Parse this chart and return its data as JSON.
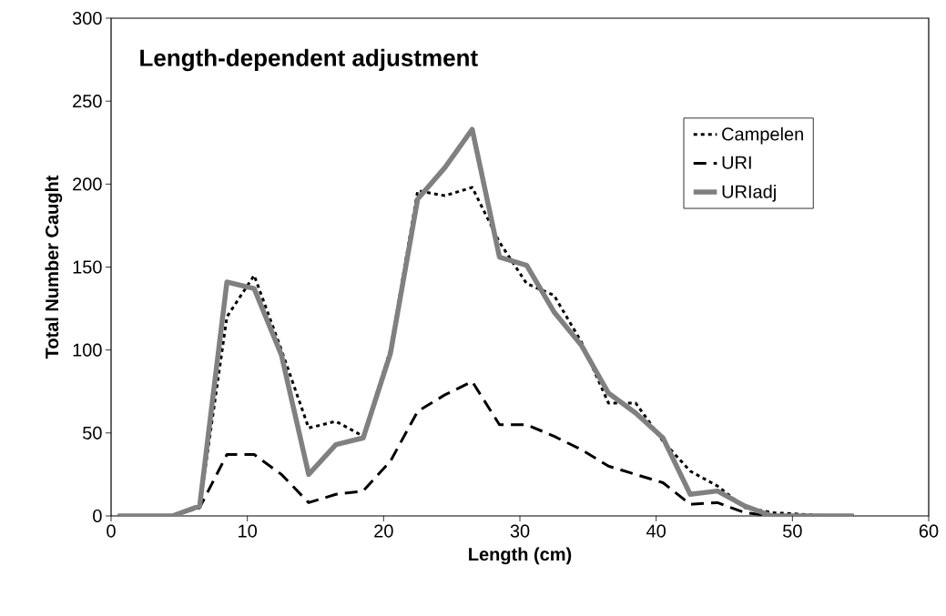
{
  "chart_data": {
    "type": "line",
    "title": "Length-dependent adjustment",
    "xlabel": "Length (cm)",
    "ylabel": "Total Number Caught",
    "x": [
      0.5,
      2.5,
      4.5,
      6.5,
      8.5,
      10.5,
      12.5,
      14.5,
      16.5,
      18.5,
      20.5,
      22.5,
      24.5,
      26.5,
      28.5,
      30.5,
      32.5,
      34.5,
      36.5,
      38.5,
      40.5,
      42.5,
      44.5,
      46.5,
      48.5,
      50.5,
      52.5,
      54.5
    ],
    "series": [
      {
        "name": "Campelen",
        "color": "#000000",
        "line_style": "dotted",
        "values": [
          0,
          0,
          0,
          5,
          120,
          145,
          100,
          53,
          57,
          48,
          100,
          196,
          193,
          198,
          165,
          140,
          133,
          105,
          68,
          68,
          45,
          27,
          18,
          5,
          2,
          1,
          0,
          0
        ]
      },
      {
        "name": "URI",
        "color": "#000000",
        "line_style": "dashed",
        "values": [
          0,
          0,
          0,
          5,
          37,
          37,
          25,
          8,
          13,
          15,
          33,
          63,
          73,
          81,
          55,
          55,
          48,
          40,
          30,
          25,
          20,
          7,
          8,
          2,
          0,
          0,
          0,
          0
        ]
      },
      {
        "name": "URIadj",
        "color": "#808080",
        "line_style": "solid",
        "values": [
          0,
          0,
          0,
          6,
          141,
          137,
          97,
          25,
          43,
          47,
          98,
          191,
          210,
          233,
          156,
          151,
          123,
          103,
          74,
          62,
          47,
          13,
          15,
          6,
          0,
          0,
          0,
          0
        ]
      }
    ],
    "xlim": [
      0,
      60
    ],
    "ylim": [
      0,
      300
    ],
    "xticks": [
      0,
      10,
      20,
      30,
      40,
      50,
      60
    ],
    "yticks": [
      0,
      50,
      100,
      150,
      200,
      250,
      300
    ],
    "grid": false,
    "legend": "top right",
    "marker": "none"
  }
}
